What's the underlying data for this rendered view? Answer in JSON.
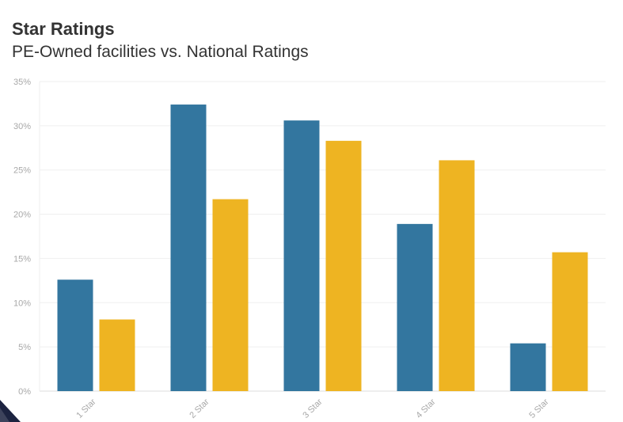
{
  "chart_data": {
    "type": "bar",
    "title": "Star Ratings",
    "subtitle": "PE-Owned facilities vs. National Ratings",
    "categories": [
      "1 Star",
      "2 Star",
      "3 Star",
      "4 Star",
      "5 Star"
    ],
    "series": [
      {
        "color": "#33769f",
        "values": [
          12.6,
          32.4,
          30.6,
          18.9,
          5.4
        ]
      },
      {
        "color": "#eeb422",
        "values": [
          8.1,
          21.7,
          28.3,
          26.1,
          15.7
        ]
      }
    ],
    "ylim": [
      0,
      35
    ],
    "y_ticks": [
      "0%",
      "5%",
      "10%",
      "15%",
      "20%",
      "25%",
      "30%",
      "35%"
    ],
    "y_tick_values": [
      0,
      5,
      10,
      15,
      20,
      25,
      30,
      35
    ],
    "grid": true,
    "xlabel": "",
    "ylabel": ""
  }
}
